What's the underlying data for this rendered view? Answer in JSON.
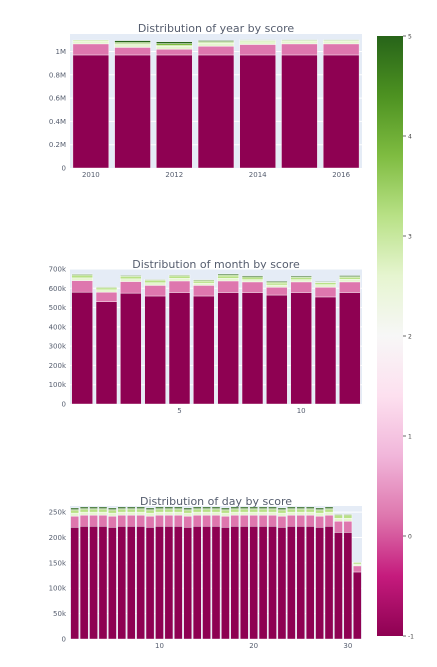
{
  "chart_data": [
    {
      "type": "bar",
      "title": "Distribution of year by score",
      "x": [
        2010,
        2011,
        2012,
        2013,
        2014,
        2015,
        2016
      ],
      "xticks": [
        2010,
        2012,
        2014,
        2016
      ],
      "ylim": [
        0,
        1150000
      ],
      "yticks": [
        0,
        200000,
        400000,
        600000,
        800000,
        1000000
      ],
      "ytick_labels": [
        "0",
        "0.2M",
        "0.4M",
        "0.6M",
        "0.8M",
        "1M"
      ],
      "series": [
        {
          "values": [
            970000,
            970000,
            970000,
            970000,
            970000,
            970000,
            970000
          ]
        },
        {
          "values": [
            95000,
            65000,
            50000,
            75000,
            90000,
            95000,
            95000
          ]
        },
        {
          "values": [
            25000,
            25000,
            25000,
            25000,
            25000,
            25000,
            25000
          ]
        },
        {
          "values": [
            8000,
            8000,
            8000,
            8000,
            8000,
            8000,
            8000
          ]
        },
        {
          "values": [
            0,
            10000,
            15000,
            8000,
            4000,
            0,
            0
          ]
        },
        {
          "values": [
            0,
            15000,
            15000,
            8000,
            4000,
            3000,
            3000
          ]
        }
      ]
    },
    {
      "type": "bar",
      "title": "Distribution of month by score",
      "x": [
        1,
        2,
        3,
        4,
        5,
        6,
        7,
        8,
        9,
        10,
        11,
        12
      ],
      "xticks": [
        5,
        10
      ],
      "ylim": [
        0,
        700000
      ],
      "yticks": [
        0,
        100000,
        200000,
        300000,
        400000,
        500000,
        600000,
        700000
      ],
      "ytick_labels": [
        "0",
        "100k",
        "200k",
        "300k",
        "400k",
        "500k",
        "600k",
        "700k"
      ],
      "series": [
        {
          "values": [
            580000,
            530000,
            575000,
            560000,
            578000,
            560000,
            578000,
            578000,
            565000,
            578000,
            555000,
            578000
          ]
        },
        {
          "values": [
            60000,
            50000,
            60000,
            55000,
            60000,
            55000,
            60000,
            55000,
            40000,
            55000,
            50000,
            55000
          ]
        },
        {
          "values": [
            14000,
            12000,
            14000,
            14000,
            14000,
            12000,
            14000,
            12000,
            12000,
            12000,
            14000,
            14000
          ]
        },
        {
          "values": [
            12000,
            10000,
            12000,
            12000,
            12000,
            10000,
            12000,
            10000,
            10000,
            10000,
            10000,
            10000
          ]
        },
        {
          "values": [
            5000,
            4000,
            4000,
            3000,
            4000,
            4000,
            5000,
            5000,
            5000,
            4000,
            3000,
            4000
          ]
        },
        {
          "values": [
            3000,
            2000,
            2000,
            3000,
            2000,
            3000,
            5000,
            5000,
            4000,
            5000,
            3000,
            5000
          ]
        }
      ]
    },
    {
      "type": "bar",
      "title": "Distribution of day by score",
      "x": [
        1,
        2,
        3,
        4,
        5,
        6,
        7,
        8,
        9,
        10,
        11,
        12,
        13,
        14,
        15,
        16,
        17,
        18,
        19,
        20,
        21,
        22,
        23,
        24,
        25,
        26,
        27,
        28,
        29,
        30,
        31
      ],
      "xticks": [
        10,
        20,
        30
      ],
      "ylim": [
        0,
        262000
      ],
      "yticks": [
        0,
        50000,
        100000,
        150000,
        200000,
        250000
      ],
      "ytick_labels": [
        "0",
        "50k",
        "100k",
        "150k",
        "200k",
        "250k"
      ],
      "series": [
        {
          "values": [
            220000,
            222000,
            222000,
            222000,
            220000,
            222000,
            222000,
            222000,
            220000,
            222000,
            222000,
            222000,
            220000,
            222000,
            222000,
            222000,
            220000,
            222000,
            222000,
            222000,
            222000,
            222000,
            220000,
            222000,
            222000,
            222000,
            220000,
            222000,
            210000,
            210000,
            132000
          ]
        },
        {
          "values": [
            22000,
            22000,
            22000,
            22000,
            22000,
            22000,
            22000,
            22000,
            22000,
            22000,
            22000,
            22000,
            22000,
            22000,
            22000,
            22000,
            22000,
            22000,
            22000,
            22000,
            22000,
            22000,
            22000,
            22000,
            22000,
            22000,
            22000,
            22000,
            22000,
            22000,
            12000
          ]
        },
        {
          "values": [
            6000,
            6000,
            6000,
            6000,
            6000,
            6000,
            6000,
            6000,
            6000,
            6000,
            6000,
            6000,
            6000,
            6000,
            6000,
            6000,
            6000,
            6000,
            6000,
            6000,
            6000,
            6000,
            6000,
            6000,
            6000,
            6000,
            6000,
            6000,
            6000,
            6000,
            3000
          ]
        },
        {
          "values": [
            5000,
            5000,
            5000,
            5000,
            5000,
            5000,
            5000,
            5000,
            5000,
            5000,
            5000,
            5000,
            5000,
            5000,
            5000,
            5000,
            5000,
            5000,
            5000,
            5000,
            5000,
            5000,
            5000,
            5000,
            5000,
            5000,
            5000,
            5000,
            5000,
            5000,
            3000
          ]
        },
        {
          "values": [
            2000,
            2000,
            2000,
            2000,
            2000,
            2000,
            2000,
            2000,
            2000,
            2000,
            2000,
            2000,
            2000,
            2000,
            2000,
            2000,
            2000,
            2000,
            2000,
            2000,
            2000,
            2000,
            2000,
            2000,
            2000,
            2000,
            2000,
            2000,
            2000,
            2000,
            1000
          ]
        },
        {
          "values": [
            3000,
            3000,
            3000,
            3000,
            3000,
            3000,
            3000,
            3000,
            3000,
            3000,
            3000,
            3000,
            3000,
            3000,
            3000,
            3000,
            3000,
            3000,
            3000,
            3000,
            3000,
            3000,
            3000,
            3000,
            3000,
            3000,
            3000,
            3000,
            1000,
            1000,
            0
          ]
        }
      ]
    }
  ],
  "colorbar": {
    "ticks": [
      "-1",
      "0",
      "1",
      "2",
      "3",
      "4",
      "5"
    ],
    "colors": [
      "#8e0152",
      "#c51b7d",
      "#de77ae",
      "#f1b6da",
      "#fde0ef",
      "#f7f7f7",
      "#e6f5d0",
      "#b8e186",
      "#7fbc41",
      "#4d9221",
      "#276419"
    ]
  },
  "colors": {
    "plot_bg": "#e5ecf6",
    "text": "#555d6e",
    "series": [
      "#8e0152",
      "#de77ae",
      "#e6f5d0",
      "#b8e186",
      "#7fbc41",
      "#276419"
    ]
  }
}
